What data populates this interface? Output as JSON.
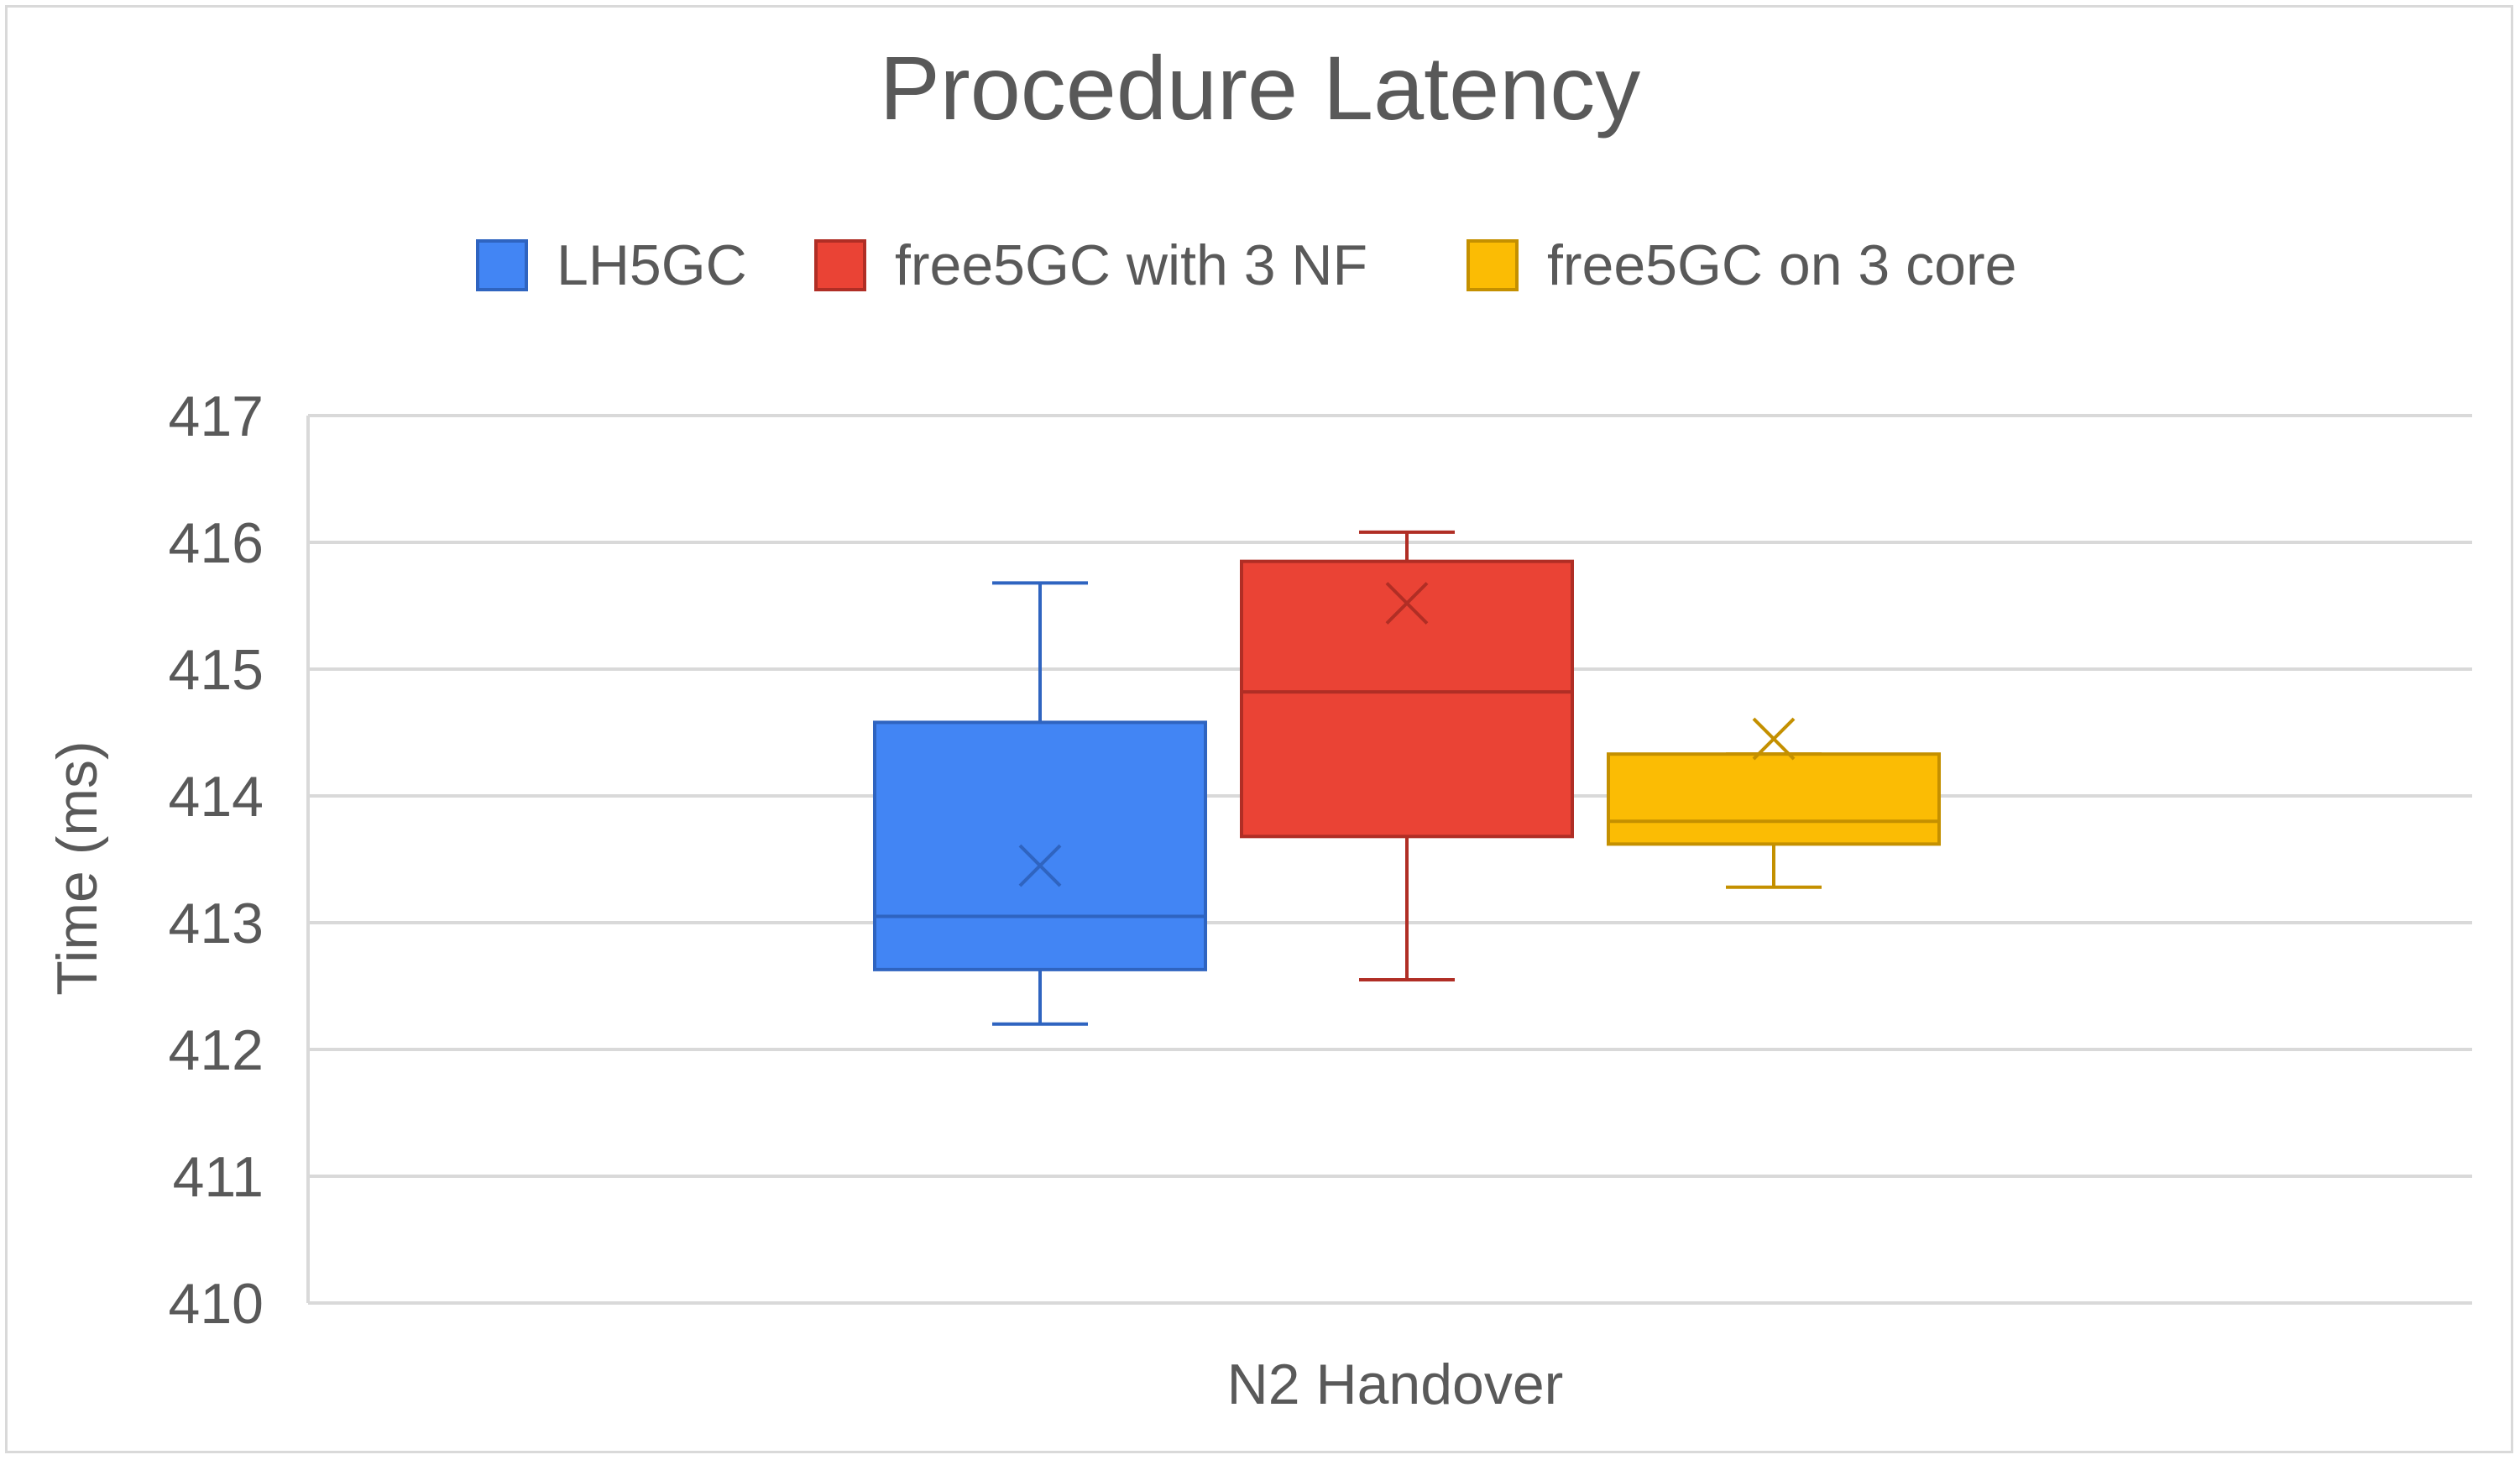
{
  "chart_data": {
    "type": "box",
    "title": "Procedure Latency",
    "xlabel": "",
    "ylabel": "Time (ms)",
    "ylim": [
      410,
      417
    ],
    "yticks": [
      "410",
      "411",
      "412",
      "413",
      "414",
      "415",
      "416",
      "417"
    ],
    "categories": [
      "N2 Handover"
    ],
    "grid": true,
    "legend_position": "top",
    "series": [
      {
        "name": "LH5GC",
        "color": "#4285f4",
        "edge": "#2f64c0",
        "min": 412.2,
        "q1": 412.63,
        "median": 413.05,
        "q3": 414.58,
        "max": 415.68,
        "mean": 413.45
      },
      {
        "name": "free5GC with 3 NF",
        "color": "#ea4335",
        "edge": "#b02e25",
        "min": 412.55,
        "q1": 413.68,
        "median": 414.82,
        "q3": 415.85,
        "max": 416.08,
        "mean": 415.52
      },
      {
        "name": "free5GC on 3 core",
        "color": "#fbbc04",
        "edge": "#c49000",
        "min": 413.28,
        "q1": 413.62,
        "median": 413.8,
        "q3": 414.33,
        "max": 414.33,
        "mean": 414.45
      }
    ]
  }
}
